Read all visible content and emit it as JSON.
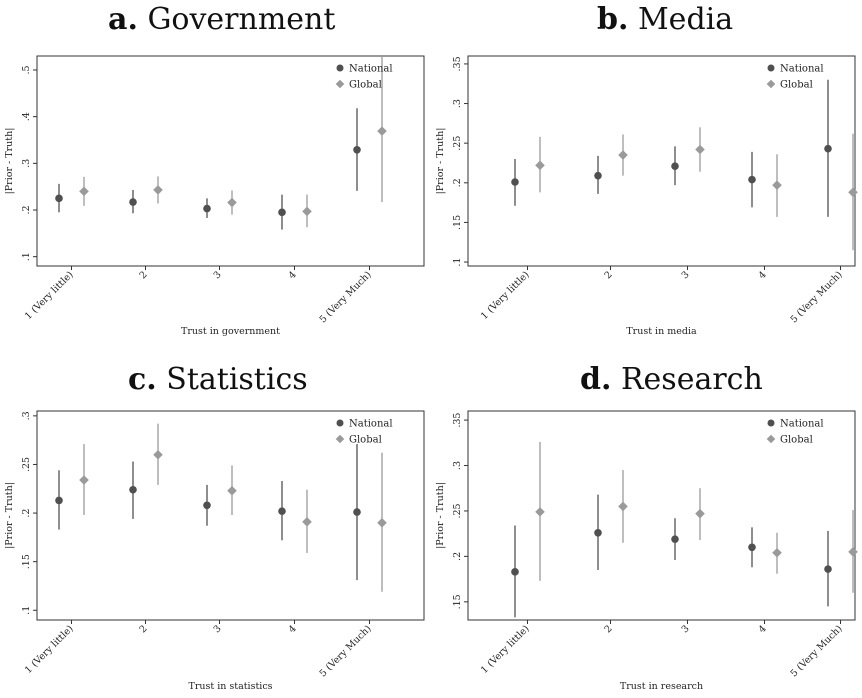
{
  "colors": {
    "National": "#505050",
    "Global": "#9a9a9a"
  },
  "panels": [
    {
      "letter": "a.",
      "name": "Government",
      "chart_data": {
        "type": "scatter",
        "categories": [
          "1 (Very little)",
          "2",
          "3",
          "4",
          "5 (Very Much)"
        ],
        "xlabel": "Trust in government",
        "ylabel": "|Prior - Truth|",
        "ylim": [
          0.08,
          0.53
        ],
        "yticks": [
          ".1",
          ".2",
          ".3",
          ".4",
          ".5"
        ],
        "ytick_values": [
          0.1,
          0.2,
          0.3,
          0.4,
          0.5
        ],
        "legend": "top-right",
        "grid": false,
        "series": [
          {
            "name": "National",
            "marker": "circle",
            "values": [
              0.225,
              0.217,
              0.203,
              0.195,
              0.329
            ],
            "ci_low": [
              0.195,
              0.193,
              0.183,
              0.158,
              0.241
            ],
            "ci_high": [
              0.256,
              0.243,
              0.225,
              0.233,
              0.418
            ]
          },
          {
            "name": "Global",
            "marker": "diamond",
            "values": [
              0.24,
              0.243,
              0.216,
              0.197,
              0.369
            ],
            "ci_low": [
              0.209,
              0.214,
              0.19,
              0.163,
              0.217
            ],
            "ci_high": [
              0.271,
              0.272,
              0.242,
              0.233,
              0.53
            ]
          }
        ]
      }
    },
    {
      "letter": "b.",
      "name": "Media",
      "chart_data": {
        "type": "scatter",
        "categories": [
          "1 (Very little)",
          "2",
          "3",
          "4",
          "5 (Very Much)"
        ],
        "xlabel": "Trust in media",
        "ylabel": "|Prior - Truth|",
        "ylim": [
          0.095,
          0.36
        ],
        "yticks": [
          ".1",
          ".15",
          ".2",
          ".25",
          ".3",
          ".35"
        ],
        "ytick_values": [
          0.1,
          0.15,
          0.2,
          0.25,
          0.3,
          0.35
        ],
        "legend": "top-right",
        "grid": false,
        "series": [
          {
            "name": "National",
            "marker": "circle",
            "values": [
              0.201,
              0.209,
              0.221,
              0.204,
              0.243
            ],
            "ci_low": [
              0.171,
              0.186,
              0.197,
              0.169,
              0.157
            ],
            "ci_high": [
              0.23,
              0.234,
              0.246,
              0.239,
              0.33
            ]
          },
          {
            "name": "Global",
            "marker": "diamond",
            "values": [
              0.222,
              0.235,
              0.242,
              0.197,
              0.188
            ],
            "ci_low": [
              0.188,
              0.209,
              0.214,
              0.157,
              0.115
            ],
            "ci_high": [
              0.258,
              0.261,
              0.27,
              0.236,
              0.262
            ]
          }
        ]
      }
    },
    {
      "letter": "c.",
      "name": "Statistics",
      "chart_data": {
        "type": "scatter",
        "categories": [
          "1 (Very little)",
          "2",
          "3",
          "4",
          "5 (Very Much)"
        ],
        "xlabel": "Trust in statistics",
        "ylabel": "|Prior - Truth|",
        "ylim": [
          0.09,
          0.305
        ],
        "yticks": [
          ".1",
          ".15",
          ".2",
          ".25",
          ".3"
        ],
        "ytick_values": [
          0.1,
          0.15,
          0.2,
          0.25,
          0.3
        ],
        "legend": "top-right",
        "grid": false,
        "series": [
          {
            "name": "National",
            "marker": "circle",
            "values": [
              0.213,
              0.224,
              0.208,
              0.202,
              0.201
            ],
            "ci_low": [
              0.183,
              0.194,
              0.187,
              0.172,
              0.131
            ],
            "ci_high": [
              0.244,
              0.253,
              0.229,
              0.233,
              0.271
            ]
          },
          {
            "name": "Global",
            "marker": "diamond",
            "values": [
              0.234,
              0.26,
              0.223,
              0.191,
              0.19
            ],
            "ci_low": [
              0.198,
              0.229,
              0.198,
              0.159,
              0.119
            ],
            "ci_high": [
              0.271,
              0.292,
              0.249,
              0.224,
              0.262
            ]
          }
        ]
      }
    },
    {
      "letter": "d.",
      "name": "Research",
      "chart_data": {
        "type": "scatter",
        "categories": [
          "1 (Very little)",
          "2",
          "3",
          "4",
          "5 (Very Much)"
        ],
        "xlabel": "Trust in research",
        "ylabel": "|Prior - Truth|",
        "ylim": [
          0.13,
          0.36
        ],
        "yticks": [
          ".15",
          ".2",
          ".25",
          ".3",
          ".35"
        ],
        "ytick_values": [
          0.15,
          0.2,
          0.25,
          0.3,
          0.35
        ],
        "legend": "top-right",
        "grid": false,
        "series": [
          {
            "name": "National",
            "marker": "circle",
            "values": [
              0.183,
              0.226,
              0.219,
              0.21,
              0.186
            ],
            "ci_low": [
              0.133,
              0.185,
              0.196,
              0.188,
              0.145
            ],
            "ci_high": [
              0.234,
              0.268,
              0.242,
              0.232,
              0.228
            ]
          },
          {
            "name": "Global",
            "marker": "diamond",
            "values": [
              0.249,
              0.255,
              0.247,
              0.204,
              0.205
            ],
            "ci_low": [
              0.173,
              0.215,
              0.218,
              0.181,
              0.16
            ],
            "ci_high": [
              0.326,
              0.295,
              0.275,
              0.226,
              0.251
            ]
          }
        ]
      }
    }
  ]
}
